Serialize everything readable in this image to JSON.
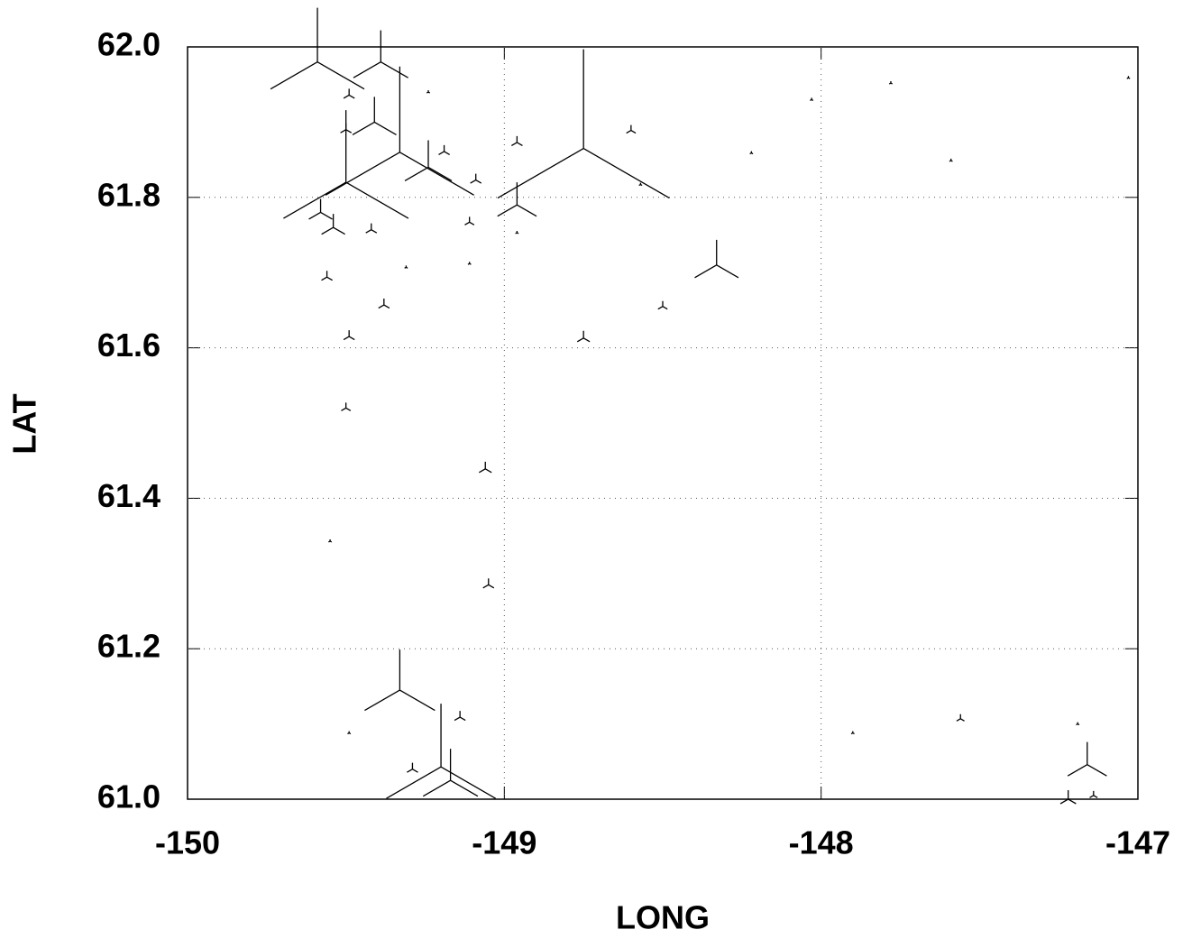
{
  "chart_data": {
    "type": "scatter",
    "marker": "tristar",
    "color": "#000000",
    "grid": true,
    "x_label": "LONG",
    "y_label": "LAT",
    "xlim": [
      -150,
      -147
    ],
    "ylim": [
      61.0,
      62.0
    ],
    "xticks": [
      -150,
      -149,
      -148,
      -147
    ],
    "yticks": [
      {
        "value": 61.0,
        "label": "61.0"
      },
      61.2,
      61.4,
      61.6,
      61.8,
      {
        "value": 62.0,
        "label": "62.0"
      }
    ],
    "x": [
      -149.59,
      -149.39,
      -148.75,
      -149.33,
      -149.41,
      -149.5,
      -149.24,
      -148.96,
      -148.33,
      -149.33,
      -149.2,
      -149.17,
      -147.16,
      -147.22,
      -149.58,
      -149.54,
      -149.49,
      -149.5,
      -149.42,
      -149.56,
      -149.38,
      -149.49,
      -149.5,
      -149.06,
      -149.05,
      -148.96,
      -149.09,
      -149.11,
      -149.19,
      -148.6,
      -148.75,
      -148.5,
      -149.14,
      -149.29,
      -147.56,
      -147.14,
      -149.24,
      -148.22,
      -148.03,
      -147.59,
      -147.03,
      -147.78,
      -147.9,
      -147.19,
      -149.55,
      -149.49,
      -149.31,
      -149.11,
      -148.57,
      -148.96
    ],
    "values": [
      61.98,
      61.98,
      61.865,
      61.86,
      61.9,
      61.82,
      61.84,
      61.79,
      61.71,
      61.145,
      61.043,
      61.025,
      61.046,
      61.0,
      61.78,
      61.76,
      61.936,
      61.89,
      61.757,
      61.694,
      61.657,
      61.615,
      61.52,
      61.439,
      61.285,
      61.873,
      61.823,
      61.767,
      61.861,
      61.889,
      61.613,
      61.655,
      61.109,
      61.04,
      61.107,
      61.005,
      61.94,
      61.859,
      61.93,
      61.849,
      61.959,
      61.952,
      61.088,
      61.1,
      61.343,
      61.088,
      61.707,
      61.712,
      61.817,
      61.753
    ],
    "sizes": [
      60,
      35,
      110,
      95,
      28,
      80,
      30,
      25,
      28,
      45,
      70,
      35,
      25,
      10,
      15,
      15,
      7,
      7,
      7,
      7,
      7,
      7,
      6,
      8,
      7,
      7,
      7,
      6,
      7,
      6,
      8,
      6,
      7,
      7,
      5,
      5,
      2,
      2,
      2,
      2,
      2,
      2,
      2,
      2,
      2,
      2,
      2,
      2,
      2,
      2
    ]
  }
}
